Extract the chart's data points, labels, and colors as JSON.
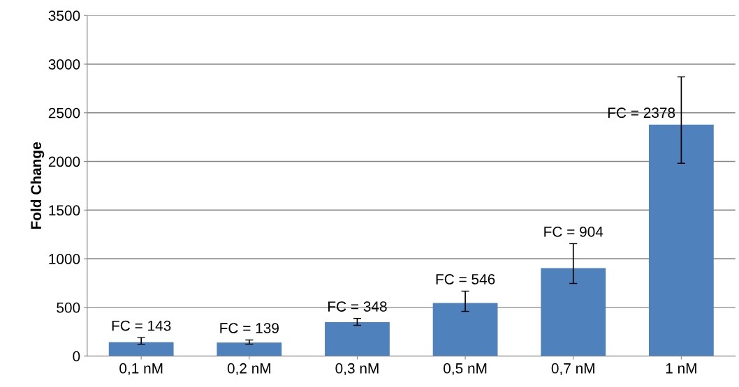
{
  "chart_data": {
    "type": "bar",
    "ylabel": "Fold Change",
    "categories": [
      "0,1 nM",
      "0,2 nM",
      "0,3 nM",
      "0,5 nM",
      "0,7 nM",
      "1 nM"
    ],
    "values": [
      143,
      139,
      348,
      546,
      904,
      2378
    ],
    "errors": [
      [
        120,
        190
      ],
      [
        122,
        165
      ],
      [
        316,
        387
      ],
      [
        459,
        667
      ],
      [
        746,
        1155
      ],
      [
        1980,
        2870
      ]
    ],
    "value_labels": [
      "FC = 143",
      "FC = 139",
      "FC = 348",
      "FC = 546",
      "FC = 904",
      "FC = 2378"
    ],
    "color": "#4f81bd",
    "ylim": [
      0,
      3500
    ],
    "yticks": [
      0,
      500,
      1000,
      1500,
      2000,
      2500,
      3000,
      3500
    ],
    "grid": "y"
  }
}
